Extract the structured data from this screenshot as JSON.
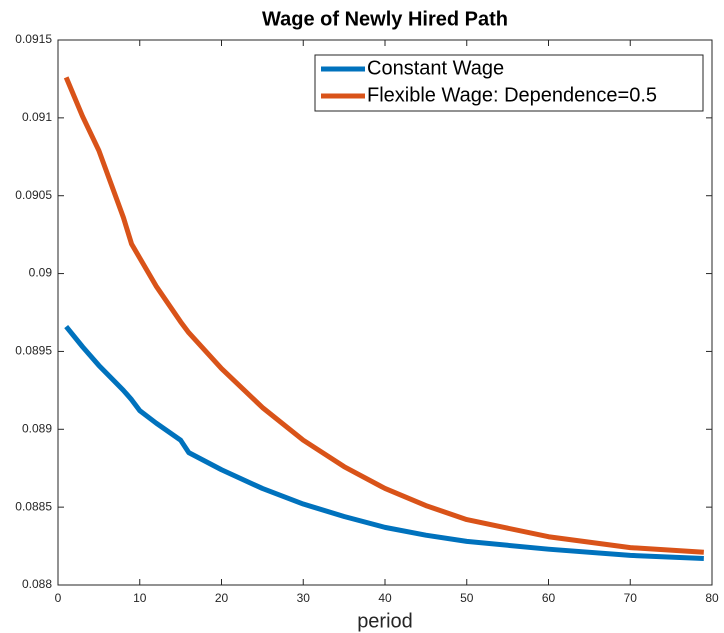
{
  "chart_data": {
    "type": "line",
    "title": "Wage of Newly Hired Path",
    "x_label": "period",
    "x": [
      1,
      3,
      5,
      8,
      9,
      10,
      12,
      15,
      16,
      20,
      25,
      30,
      35,
      40,
      45,
      50,
      60,
      70,
      79
    ],
    "series": [
      {
        "name": "Constant Wage",
        "color": "#0072BD",
        "values": [
          0.08966,
          0.08953,
          0.08941,
          0.08925,
          0.08919,
          0.08912,
          0.08904,
          0.08893,
          0.08885,
          0.08874,
          0.08862,
          0.08852,
          0.08844,
          0.08837,
          0.08832,
          0.08828,
          0.08823,
          0.08819,
          0.08817
        ]
      },
      {
        "name": "Flexible Wage: Dependence=0.5",
        "color": "#D95319",
        "values": [
          0.09126,
          0.09101,
          0.09079,
          0.09036,
          0.09019,
          0.0901,
          0.08992,
          0.08969,
          0.08962,
          0.08939,
          0.08914,
          0.08893,
          0.08876,
          0.08862,
          0.08851,
          0.08842,
          0.08831,
          0.08824,
          0.08821
        ]
      }
    ],
    "xlim": [
      0,
      80
    ],
    "xticks": [
      0,
      10,
      20,
      30,
      40,
      50,
      60,
      70,
      80
    ],
    "ylim": [
      0.088,
      0.0915
    ],
    "yticks": [
      0.088,
      0.0885,
      0.089,
      0.0895,
      0.09,
      0.0905,
      0.091,
      0.0915
    ],
    "grid": false,
    "legend": "northeast"
  }
}
